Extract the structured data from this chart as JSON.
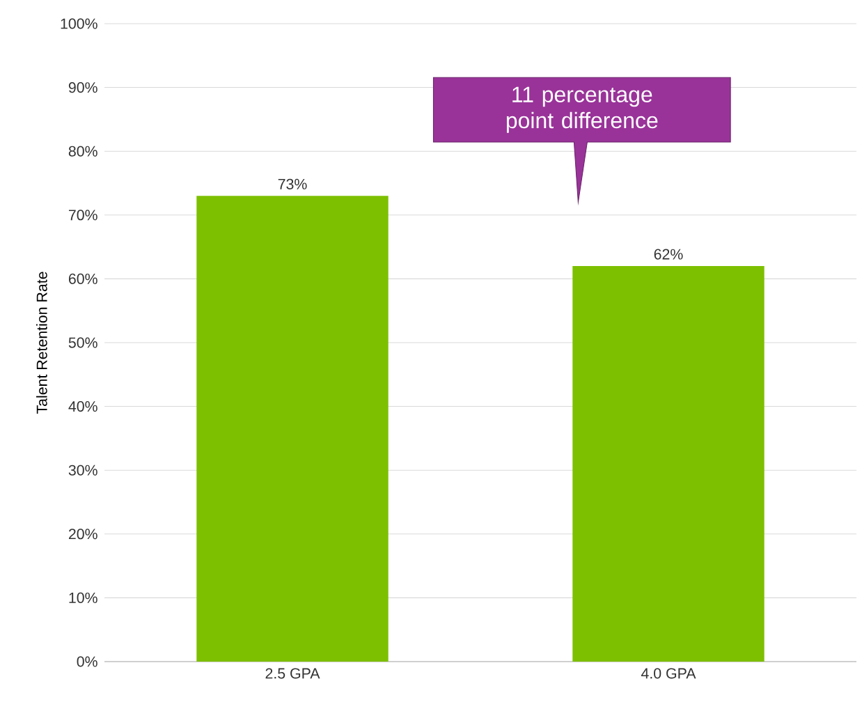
{
  "chart_data": {
    "type": "bar",
    "ylabel": "Talent Retention Rate",
    "categories": [
      "2.5 GPA",
      "4.0 GPA"
    ],
    "values": [
      73,
      62
    ],
    "value_labels": [
      "73%",
      "62%"
    ],
    "color": "#7dc000",
    "ylim": [
      0,
      100
    ],
    "yticks": [
      {
        "value": 0,
        "label": "0%"
      },
      {
        "value": 10,
        "label": "10%"
      },
      {
        "value": 20,
        "label": "20%"
      },
      {
        "value": 30,
        "label": "30%"
      },
      {
        "value": 40,
        "label": "40%"
      },
      {
        "value": 50,
        "label": "50%"
      },
      {
        "value": 60,
        "label": "60%"
      },
      {
        "value": 70,
        "label": "70%"
      },
      {
        "value": 80,
        "label": "80%"
      },
      {
        "value": 90,
        "label": "90%"
      },
      {
        "value": 100,
        "label": "100%"
      }
    ],
    "grid": "y",
    "annotations": [
      "11 percentage point difference"
    ]
  }
}
